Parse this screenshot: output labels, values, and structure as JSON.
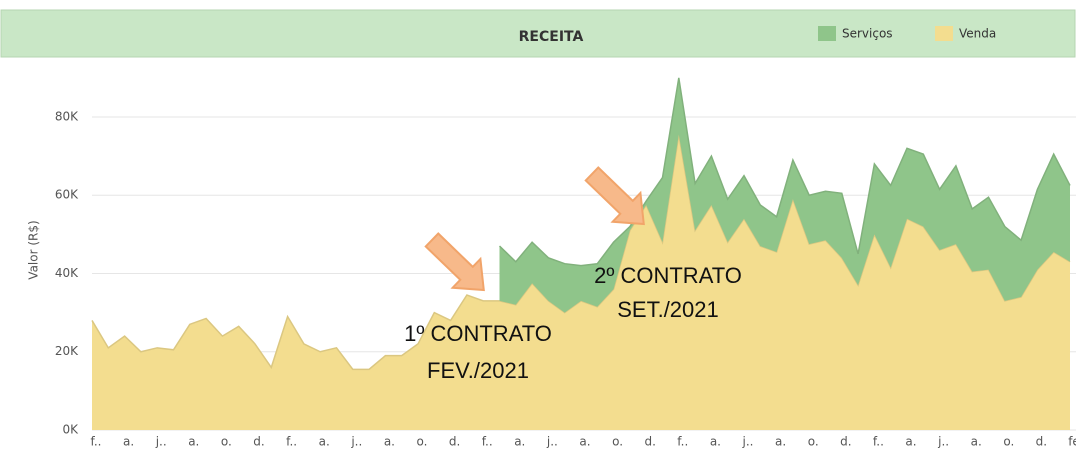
{
  "chart_data": {
    "type": "stacked_area",
    "title": "RECEITA",
    "ylabel": "Valor (R$)",
    "categories": [
      "f..",
      null,
      "a.",
      null,
      "j..",
      null,
      "a.",
      null,
      "o.",
      null,
      "d.",
      null,
      "f..",
      null,
      "a.",
      null,
      "j..",
      null,
      "a.",
      null,
      "o.",
      null,
      "d.",
      null,
      "f..",
      null,
      "a.",
      null,
      "j..",
      null,
      "a.",
      null,
      "o.",
      null,
      "d.",
      null,
      "f..",
      null,
      "a.",
      null,
      "j..",
      null,
      "a.",
      null,
      "o.",
      null,
      "d.",
      null,
      "f..",
      null,
      "a.",
      null,
      "j..",
      null,
      "a.",
      null,
      "o.",
      null,
      "d.",
      null,
      "fe"
    ],
    "series": [
      {
        "name": "Venda",
        "color": "#f3dd8f",
        "values": [
          28000,
          21000,
          24000,
          20000,
          21000,
          20500,
          27000,
          28500,
          24000,
          26500,
          22000,
          16000,
          29000,
          22000,
          20000,
          21000,
          15500,
          15500,
          19000,
          19000,
          22000,
          30000,
          28000,
          34500,
          33000,
          33000,
          32000,
          37500,
          33000,
          30000,
          33000,
          31500,
          36000,
          51000,
          57500,
          48000,
          75500,
          51000,
          57500,
          48000,
          54000,
          47000,
          45500,
          59000,
          47500,
          48500,
          44000,
          37000,
          50000,
          41500,
          54000,
          52000,
          46000,
          47500,
          40500,
          41000,
          33000,
          34000,
          41000,
          45500,
          43000
        ]
      },
      {
        "name": "Serviços",
        "color": "#8fc58a",
        "values": [
          null,
          null,
          null,
          null,
          null,
          null,
          null,
          null,
          null,
          null,
          null,
          null,
          null,
          null,
          null,
          null,
          null,
          null,
          null,
          null,
          null,
          null,
          null,
          null,
          null,
          14000,
          11000,
          10500,
          11000,
          12500,
          9000,
          11000,
          12000,
          1000,
          1000,
          16500,
          14500,
          12000,
          12500,
          11000,
          11000,
          10500,
          9000,
          10000,
          12500,
          12500,
          16500,
          8000,
          18000,
          21000,
          18000,
          18500,
          15500,
          20000,
          16000,
          18500,
          19000,
          14500,
          20500,
          25000,
          19500
        ]
      }
    ],
    "ylim": [
      0,
      92000
    ],
    "yticks": [
      {
        "value": 0,
        "label": "0K"
      },
      {
        "value": 20000,
        "label": "20K"
      },
      {
        "value": 40000,
        "label": "40K"
      },
      {
        "value": 60000,
        "label": "60K"
      },
      {
        "value": 80000,
        "label": "80K"
      }
    ],
    "grid": true,
    "legend": "top-right",
    "annotations": [
      [
        "1º CONTRATO",
        "FEV./2021"
      ],
      [
        "2º CONTRATO",
        "SET./2021"
      ]
    ]
  }
}
